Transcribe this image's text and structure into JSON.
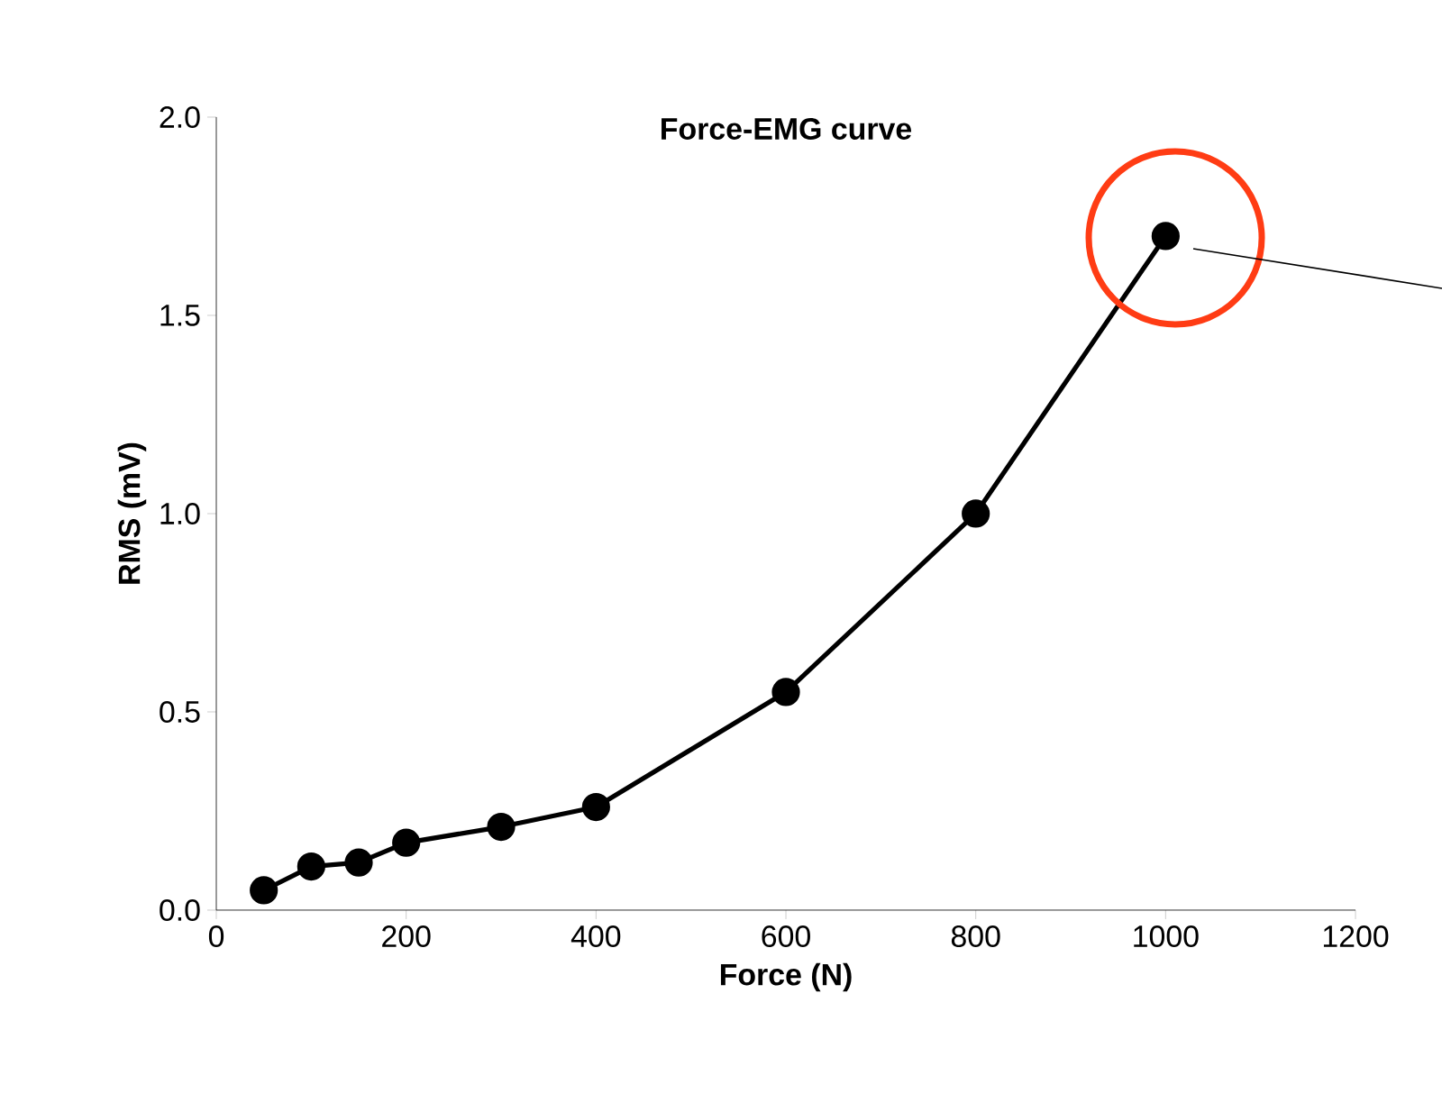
{
  "chart_data": {
    "type": "line",
    "title": "Force-EMG curve",
    "xlabel": "Force (N)",
    "ylabel": "RMS (mV)",
    "x": [
      50,
      100,
      150,
      200,
      300,
      400,
      600,
      800,
      1000
    ],
    "series": [
      {
        "color": "#000000",
        "values": [
          0.05,
          0.11,
          0.12,
          0.17,
          0.21,
          0.26,
          0.55,
          1.0,
          1.7
        ]
      }
    ],
    "xlim": [
      0,
      1200
    ],
    "xticks": [
      0,
      200,
      400,
      600,
      800,
      1000,
      1200
    ],
    "ylim": [
      0,
      2
    ],
    "yticks": [
      {
        "value": 0,
        "label": "0.0"
      },
      {
        "value": 0.5,
        "label": "0.5"
      },
      {
        "value": 1,
        "label": "1.0"
      },
      {
        "value": 1.5,
        "label": "1.5"
      },
      {
        "value": 2,
        "label": "2.0"
      }
    ],
    "grid": false,
    "marker": "circle",
    "line_style": "solid"
  }
}
